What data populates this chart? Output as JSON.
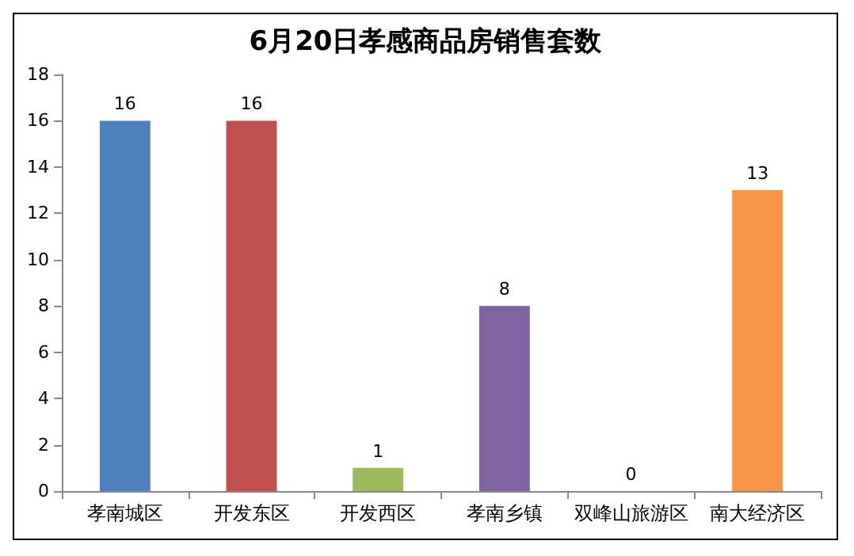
{
  "chart_data": {
    "type": "bar",
    "title": "6月20日孝感商品房销售套数",
    "categories": [
      "孝南城区",
      "开发东区",
      "开发西区",
      "孝南乡镇",
      "双峰山旅游区",
      "南大经济区"
    ],
    "values": [
      16,
      16,
      1,
      8,
      0,
      13
    ],
    "colors": [
      "#4f81bd",
      "#c0504d",
      "#9bbb59",
      "#8064a2",
      "#4bacc6",
      "#f79646"
    ],
    "ylim": [
      0,
      18
    ],
    "yticks": [
      0,
      2,
      4,
      6,
      8,
      10,
      12,
      14,
      16,
      18
    ],
    "grid": false,
    "data_labels": true
  }
}
